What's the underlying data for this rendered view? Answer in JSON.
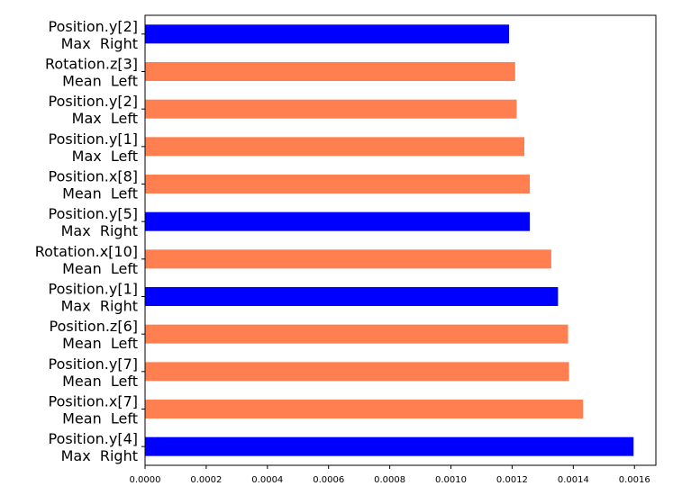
{
  "chart_data": {
    "type": "bar",
    "orientation": "horizontal",
    "title": "",
    "xlabel": "",
    "ylabel": "",
    "xlim": [
      0,
      0.00167
    ],
    "grid": false,
    "legend": "none",
    "x_ticks": [
      "0.0000",
      "0.0002",
      "0.0004",
      "0.0006",
      "0.0008",
      "0.0010",
      "0.0012",
      "0.0014",
      "0.0016"
    ],
    "x_tick_values": [
      0,
      0.0002,
      0.0004,
      0.0006,
      0.0008,
      0.001,
      0.0012,
      0.0014,
      0.0016
    ],
    "colors": {
      "blue": "#0000ff",
      "orange": "#ff7f50"
    },
    "bars": [
      {
        "label_line1": "Position.y[2]",
        "label_line2": "Max  Right",
        "value": 0.00119,
        "color": "#0000ff"
      },
      {
        "label_line1": "Rotation.z[3]",
        "label_line2": "Mean  Left",
        "value": 0.00121,
        "color": "#ff7f50"
      },
      {
        "label_line1": "Position.y[2]",
        "label_line2": "Max  Left",
        "value": 0.001215,
        "color": "#ff7f50"
      },
      {
        "label_line1": "Position.y[1]",
        "label_line2": "Max  Left",
        "value": 0.00124,
        "color": "#ff7f50"
      },
      {
        "label_line1": "Position.x[8]",
        "label_line2": "Mean  Left",
        "value": 0.001258,
        "color": "#ff7f50"
      },
      {
        "label_line1": "Position.y[5]",
        "label_line2": "Max  Right",
        "value": 0.001258,
        "color": "#0000ff"
      },
      {
        "label_line1": "Rotation.x[10]",
        "label_line2": "Mean  Left",
        "value": 0.001328,
        "color": "#ff7f50"
      },
      {
        "label_line1": "Position.y[1]",
        "label_line2": "Max  Right",
        "value": 0.00135,
        "color": "#0000ff"
      },
      {
        "label_line1": "Position.z[6]",
        "label_line2": "Mean  Left",
        "value": 0.001383,
        "color": "#ff7f50"
      },
      {
        "label_line1": "Position.y[7]",
        "label_line2": "Mean  Left",
        "value": 0.001386,
        "color": "#ff7f50"
      },
      {
        "label_line1": "Position.x[7]",
        "label_line2": "Mean  Left",
        "value": 0.001432,
        "color": "#ff7f50"
      },
      {
        "label_line1": "Position.y[4]",
        "label_line2": "Max  Right",
        "value": 0.001597,
        "color": "#0000ff"
      }
    ]
  }
}
